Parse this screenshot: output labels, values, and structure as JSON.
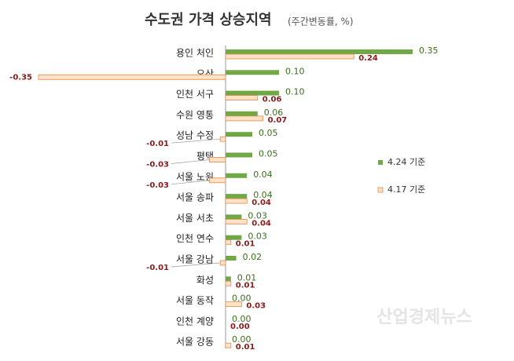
{
  "chart_data": {
    "type": "hbar",
    "title": "수도권 가격 상승지역",
    "subtitle": "(주간변동률, %)",
    "categories": [
      "용인 처인",
      "오산",
      "인천 서구",
      "수원 영통",
      "성남 수정",
      "평택",
      "서울 노원",
      "서울 송파",
      "서울 서초",
      "인천 연수",
      "서울 강남",
      "화성",
      "서울 동작",
      "인천 계양",
      "서울 강동"
    ],
    "series": [
      {
        "name": "4.24 기준",
        "color": "#70a845",
        "values": [
          0.35,
          0.1,
          0.1,
          0.06,
          0.05,
          0.05,
          0.04,
          0.04,
          0.03,
          0.03,
          0.02,
          0.01,
          0.0,
          0.0,
          0.0
        ],
        "value_labels": [
          "0.35",
          "0.10",
          "0.10",
          "0.06",
          "0.05",
          "0.05",
          "0.04",
          "0.04",
          "0.03",
          "0.03",
          "0.02",
          "0.01",
          "0.00",
          "0.00",
          "0.00"
        ]
      },
      {
        "name": "4.17 기준",
        "color": "#fde2c8",
        "values": [
          0.24,
          -0.35,
          0.06,
          0.07,
          -0.01,
          -0.03,
          -0.03,
          0.04,
          0.04,
          0.01,
          -0.01,
          0.01,
          0.03,
          0.0,
          0.01
        ],
        "value_labels": [
          "0.24",
          "-0.35",
          "0.06",
          "0.07",
          "-0.01",
          "-0.03",
          "-0.03",
          "0.04",
          "0.04",
          "0.01",
          "-0.01",
          "0.01",
          "0.03",
          "0.00",
          "0.01"
        ]
      }
    ],
    "watermark": "산업경제뉴스"
  }
}
